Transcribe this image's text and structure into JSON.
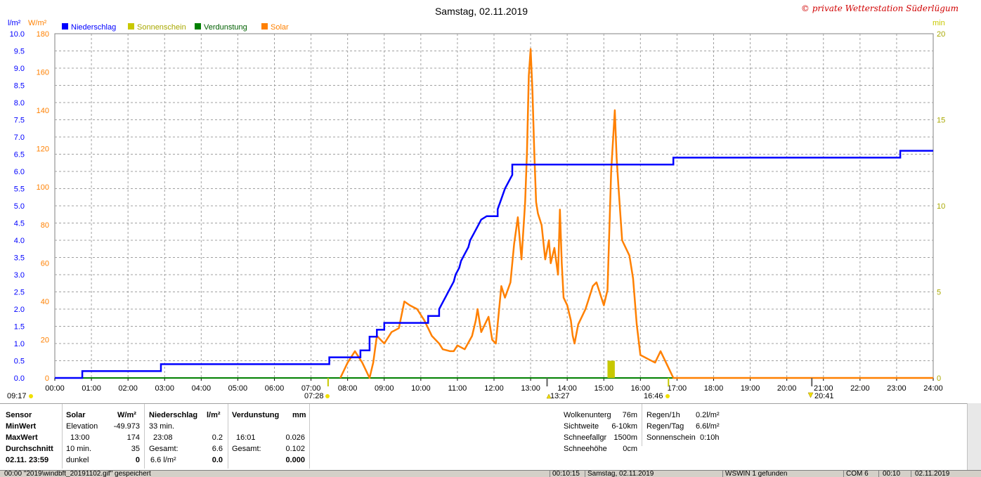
{
  "title": "Samstag, 02.11.2019",
  "credit": "© private Wetterstation Süderlügum",
  "legend": [
    {
      "label": "Niederschlag",
      "color": "#0000ff"
    },
    {
      "label": "Sonnenschein",
      "color": "#c8c800"
    },
    {
      "label": "Verdunstung",
      "color": "#008000"
    },
    {
      "label": "Solar",
      "color": "#ff8000"
    }
  ],
  "units": {
    "left1": "l/m²",
    "left2": "W/m²",
    "right": "min"
  },
  "chart_data": {
    "type": "line",
    "x_ticks": [
      "00:00",
      "01:00",
      "02:00",
      "03:00",
      "04:00",
      "05:00",
      "06:00",
      "07:00",
      "08:00",
      "09:00",
      "10:00",
      "11:00",
      "12:00",
      "13:00",
      "14:00",
      "15:00",
      "16:00",
      "17:00",
      "18:00",
      "19:00",
      "20:00",
      "21:00",
      "22:00",
      "23:00",
      "24:00"
    ],
    "axes": {
      "x_hours": [
        0,
        24
      ],
      "precip_lm2": {
        "range": [
          0,
          10
        ],
        "ticks": [
          "0.0",
          "0.5",
          "1.0",
          "1.5",
          "2.0",
          "2.5",
          "3.0",
          "3.5",
          "4.0",
          "4.5",
          "5.0",
          "5.5",
          "6.0",
          "6.5",
          "7.0",
          "7.5",
          "8.0",
          "8.5",
          "9.0",
          "9.5",
          "10.0"
        ]
      },
      "solar_wm2": {
        "range": [
          0,
          180
        ],
        "ticks": [
          "0",
          "20",
          "40",
          "60",
          "80",
          "100",
          "120",
          "140",
          "160",
          "180"
        ]
      },
      "sunshine_min": {
        "range": [
          0,
          20
        ],
        "ticks": [
          "0",
          "5",
          "10",
          "15",
          "20"
        ]
      }
    },
    "series": [
      {
        "name": "Niederschlag",
        "unit": "l/m²",
        "points": [
          [
            0,
            0
          ],
          [
            0.75,
            0
          ],
          [
            0.75,
            0.2
          ],
          [
            2.9,
            0.2
          ],
          [
            2.9,
            0.4
          ],
          [
            7.5,
            0.4
          ],
          [
            7.5,
            0.6
          ],
          [
            8.35,
            0.6
          ],
          [
            8.35,
            0.8
          ],
          [
            8.6,
            0.8
          ],
          [
            8.6,
            1.2
          ],
          [
            8.8,
            1.2
          ],
          [
            8.8,
            1.4
          ],
          [
            9.0,
            1.4
          ],
          [
            9.0,
            1.6
          ],
          [
            10.2,
            1.6
          ],
          [
            10.2,
            1.8
          ],
          [
            10.5,
            1.8
          ],
          [
            10.5,
            2.0
          ],
          [
            10.6,
            2.2
          ],
          [
            10.7,
            2.4
          ],
          [
            10.8,
            2.6
          ],
          [
            10.9,
            2.8
          ],
          [
            10.95,
            3.0
          ],
          [
            11.05,
            3.2
          ],
          [
            11.1,
            3.4
          ],
          [
            11.2,
            3.6
          ],
          [
            11.3,
            3.8
          ],
          [
            11.35,
            4.0
          ],
          [
            11.45,
            4.2
          ],
          [
            11.55,
            4.4
          ],
          [
            11.65,
            4.6
          ],
          [
            11.8,
            4.7
          ],
          [
            12.0,
            4.7
          ],
          [
            12.1,
            4.7
          ],
          [
            12.1,
            4.9
          ],
          [
            12.2,
            5.2
          ],
          [
            12.3,
            5.5
          ],
          [
            12.4,
            5.7
          ],
          [
            12.5,
            5.9
          ],
          [
            12.5,
            6.2
          ],
          [
            16.9,
            6.2
          ],
          [
            16.9,
            6.4
          ],
          [
            23.1,
            6.4
          ],
          [
            23.1,
            6.6
          ],
          [
            24.0,
            6.6
          ]
        ]
      },
      {
        "name": "Solar",
        "unit": "W/m²",
        "points": [
          [
            7.8,
            0
          ],
          [
            8.0,
            8
          ],
          [
            8.2,
            14
          ],
          [
            8.4,
            8
          ],
          [
            8.6,
            0
          ],
          [
            8.7,
            8
          ],
          [
            8.8,
            22
          ],
          [
            9.0,
            18
          ],
          [
            9.2,
            24
          ],
          [
            9.4,
            26
          ],
          [
            9.55,
            40
          ],
          [
            9.7,
            38
          ],
          [
            9.9,
            36
          ],
          [
            10.1,
            30
          ],
          [
            10.3,
            22
          ],
          [
            10.5,
            18
          ],
          [
            10.6,
            15
          ],
          [
            10.8,
            14
          ],
          [
            10.9,
            14
          ],
          [
            11.0,
            17
          ],
          [
            11.2,
            15
          ],
          [
            11.4,
            22
          ],
          [
            11.5,
            30
          ],
          [
            11.55,
            36
          ],
          [
            11.65,
            24
          ],
          [
            11.75,
            28
          ],
          [
            11.85,
            32
          ],
          [
            11.95,
            20
          ],
          [
            12.05,
            18
          ],
          [
            12.1,
            28
          ],
          [
            12.2,
            48
          ],
          [
            12.3,
            42
          ],
          [
            12.45,
            50
          ],
          [
            12.55,
            70
          ],
          [
            12.65,
            84
          ],
          [
            12.75,
            62
          ],
          [
            12.85,
            92
          ],
          [
            12.9,
            118
          ],
          [
            12.95,
            158
          ],
          [
            13.0,
            172
          ],
          [
            13.05,
            150
          ],
          [
            13.1,
            118
          ],
          [
            13.15,
            92
          ],
          [
            13.2,
            86
          ],
          [
            13.3,
            80
          ],
          [
            13.4,
            62
          ],
          [
            13.5,
            72
          ],
          [
            13.55,
            60
          ],
          [
            13.65,
            68
          ],
          [
            13.75,
            54
          ],
          [
            13.8,
            88
          ],
          [
            13.85,
            60
          ],
          [
            13.9,
            42
          ],
          [
            14.0,
            38
          ],
          [
            14.1,
            30
          ],
          [
            14.15,
            22
          ],
          [
            14.2,
            18
          ],
          [
            14.3,
            28
          ],
          [
            14.4,
            32
          ],
          [
            14.5,
            36
          ],
          [
            14.6,
            42
          ],
          [
            14.7,
            48
          ],
          [
            14.8,
            50
          ],
          [
            14.9,
            44
          ],
          [
            15.0,
            38
          ],
          [
            15.1,
            46
          ],
          [
            15.2,
            108
          ],
          [
            15.3,
            140
          ],
          [
            15.35,
            115
          ],
          [
            15.4,
            100
          ],
          [
            15.5,
            72
          ],
          [
            15.6,
            68
          ],
          [
            15.7,
            64
          ],
          [
            15.8,
            52
          ],
          [
            15.9,
            28
          ],
          [
            16.0,
            12
          ],
          [
            16.2,
            10
          ],
          [
            16.4,
            8
          ],
          [
            16.55,
            14
          ],
          [
            16.7,
            8
          ],
          [
            16.8,
            4
          ],
          [
            16.9,
            0
          ],
          [
            24.0,
            0
          ]
        ]
      },
      {
        "name": "Sonnenschein",
        "unit": "min",
        "points": [
          [
            15.1,
            0
          ],
          [
            15.1,
            1
          ],
          [
            15.3,
            1
          ],
          [
            15.3,
            0
          ]
        ]
      },
      {
        "name": "Verdunstung",
        "unit": "mm",
        "points": [
          [
            0,
            0
          ],
          [
            24,
            0
          ]
        ]
      }
    ],
    "markers": {
      "sun_left": "09:17",
      "sunrise": "07:28",
      "noon": "13:27",
      "sunset": "16:46",
      "moon": "20:41"
    }
  },
  "stats": {
    "col_sensor": {
      "h": "Sensor",
      "min": "MinWert",
      "max": "MaxWert",
      "avg": "Durchschnitt",
      "date": "02.11. 23:59"
    },
    "col_solar": {
      "h": "Solar",
      "unit": "W/m²",
      "r1a": "Elevation",
      "r1b": "-49.973",
      "r2a": "13:00",
      "r2b": "174",
      "r3a": "10 min.",
      "r3b": "35",
      "r4a": "dunkel",
      "r4b": "0"
    },
    "col_precip": {
      "h": "Niederschlag",
      "unit": "l/m²",
      "r1a": "33 min.",
      "r2a": "23:08",
      "r2b": "0.2",
      "r3a": "Gesamt:",
      "r3b": "6.6",
      "r4a": "6.6 l/m²",
      "r4b": "0.0"
    },
    "col_evap": {
      "h": "Verdunstung",
      "unit": "mm",
      "r2a": "16:01",
      "r2b": "0.026",
      "r3a": "Gesamt:",
      "r3b": "0.102",
      "r4b": "0.000"
    },
    "col_cloud": {
      "r1a": "Wolkenunterg",
      "r1b": "76m",
      "r2a": "Sichtweite",
      "r2b": "6-10km",
      "r3a": "Schneefallgr",
      "r3b": "1500m",
      "r4a": "Schneehöhe",
      "r4b": "0cm"
    },
    "col_rain": {
      "r1a": "Regen/1h",
      "r1b": "0.2l/m²",
      "r2a": "Regen/Tag",
      "r2b": "6.6l/m²",
      "r3a": "Sonnenschein",
      "r3b": "0:10h"
    }
  },
  "status": {
    "s1": "00:00 \"2019\\windbft_20191102.gif\" gespeichert",
    "s2": "00:10:15",
    "s3": "Samstag, 02.11.2019",
    "s4": "WSWIN 1 gefunden",
    "s5": "COM 6",
    "s6": "00:10",
    "s7": "02.11.2019"
  }
}
